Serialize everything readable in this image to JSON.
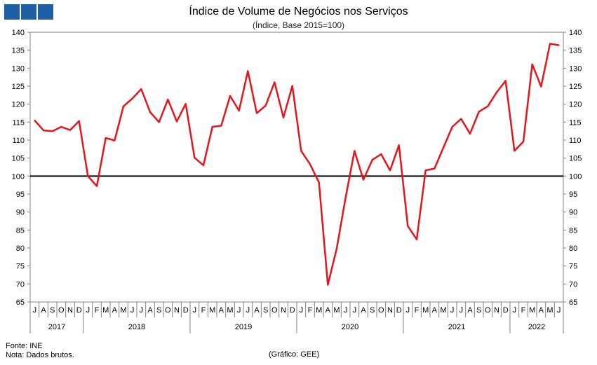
{
  "header": {
    "title": "Índice de Volume de Negócios nos Serviços",
    "subtitle": "(Índice, Base 2015=100)",
    "logo_color": "#1f5fa6"
  },
  "footer": {
    "source": "Fonte: INE",
    "note": "Nota: Dados brutos.",
    "credit": "(Gráfico: GEE)"
  },
  "chart_data": {
    "type": "line",
    "title": "Índice de Volume de Negócios nos Serviços",
    "subtitle": "(Índice, Base 2015=100)",
    "ylim": [
      65,
      140
    ],
    "yticks": [
      65,
      70,
      75,
      80,
      85,
      90,
      95,
      100,
      105,
      110,
      115,
      120,
      125,
      130,
      135,
      140
    ],
    "y_axis_both_sides": true,
    "reference_line": 100,
    "grid": false,
    "line_color": "#e8141c",
    "x_month_labels": [
      "J",
      "A",
      "S",
      "O",
      "N",
      "D",
      "J",
      "F",
      "M",
      "A",
      "M",
      "J",
      "J",
      "A",
      "S",
      "O",
      "N",
      "D",
      "J",
      "F",
      "M",
      "A",
      "M",
      "J",
      "J",
      "A",
      "S",
      "O",
      "N",
      "D",
      "J",
      "F",
      "M",
      "A",
      "M",
      "J",
      "J",
      "A",
      "S",
      "O",
      "N",
      "D",
      "J",
      "F",
      "M",
      "A",
      "M",
      "J",
      "J",
      "A",
      "S",
      "O",
      "N",
      "D",
      "J",
      "F",
      "M",
      "A",
      "M",
      "J"
    ],
    "x_year_groups": [
      {
        "label": "2017",
        "start": 0,
        "count": 6
      },
      {
        "label": "2018",
        "start": 6,
        "count": 12
      },
      {
        "label": "2019",
        "start": 18,
        "count": 12
      },
      {
        "label": "2020",
        "start": 30,
        "count": 12
      },
      {
        "label": "2021",
        "start": 42,
        "count": 12
      },
      {
        "label": "2022",
        "start": 54,
        "count": 6
      }
    ],
    "series": [
      {
        "values": [
          115.5,
          112.7,
          112.5,
          113.7,
          112.8,
          115.3,
          100.0,
          97.2,
          110.6,
          109.9,
          119.4,
          121.6,
          124.2,
          117.8,
          115.0,
          121.3,
          115.2,
          120.1,
          105.1,
          103.0,
          113.7,
          114.0,
          122.3,
          118.2,
          129.2,
          117.5,
          119.6,
          126.1,
          116.3,
          125.1,
          107.0,
          103.3,
          98.2,
          69.8,
          79.9,
          94.1,
          107.0,
          99.0,
          104.5,
          106.1,
          101.6,
          108.6,
          86.1,
          82.4,
          101.6,
          102.1,
          107.9,
          113.7,
          115.9,
          111.8,
          117.9,
          119.4,
          123.3,
          126.5,
          107.0,
          109.6,
          131.1,
          124.9,
          136.8,
          136.4
        ]
      }
    ]
  }
}
